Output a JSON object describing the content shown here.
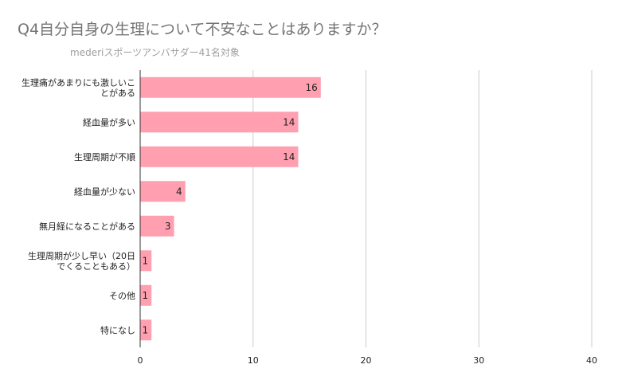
{
  "chart_data": {
    "type": "bar",
    "orientation": "horizontal",
    "title": "Q4自分自身の生理について不安なことはありますか？",
    "subtitle": "mederiスポーツアンバサダー41名対象",
    "categories": [
      [
        "生理痛があまりにも激しいこ",
        "とがある"
      ],
      [
        "経血量が多い"
      ],
      [
        "生理周期が不順"
      ],
      [
        "経血量が少ない"
      ],
      [
        "無月経になることがある"
      ],
      [
        "生理周期が少し早い（20日",
        "でくることもある）"
      ],
      [
        "その他"
      ],
      [
        "特になし"
      ]
    ],
    "values": [
      16,
      14,
      14,
      4,
      3,
      1,
      1,
      1
    ],
    "xlim": [
      0,
      40
    ],
    "x_ticks": [
      0,
      10,
      20,
      30,
      40
    ],
    "grid": true,
    "legend": "none",
    "bar_color": "#ff9fb0",
    "grid_color": "#cccccc",
    "axis_color": "#333333"
  }
}
